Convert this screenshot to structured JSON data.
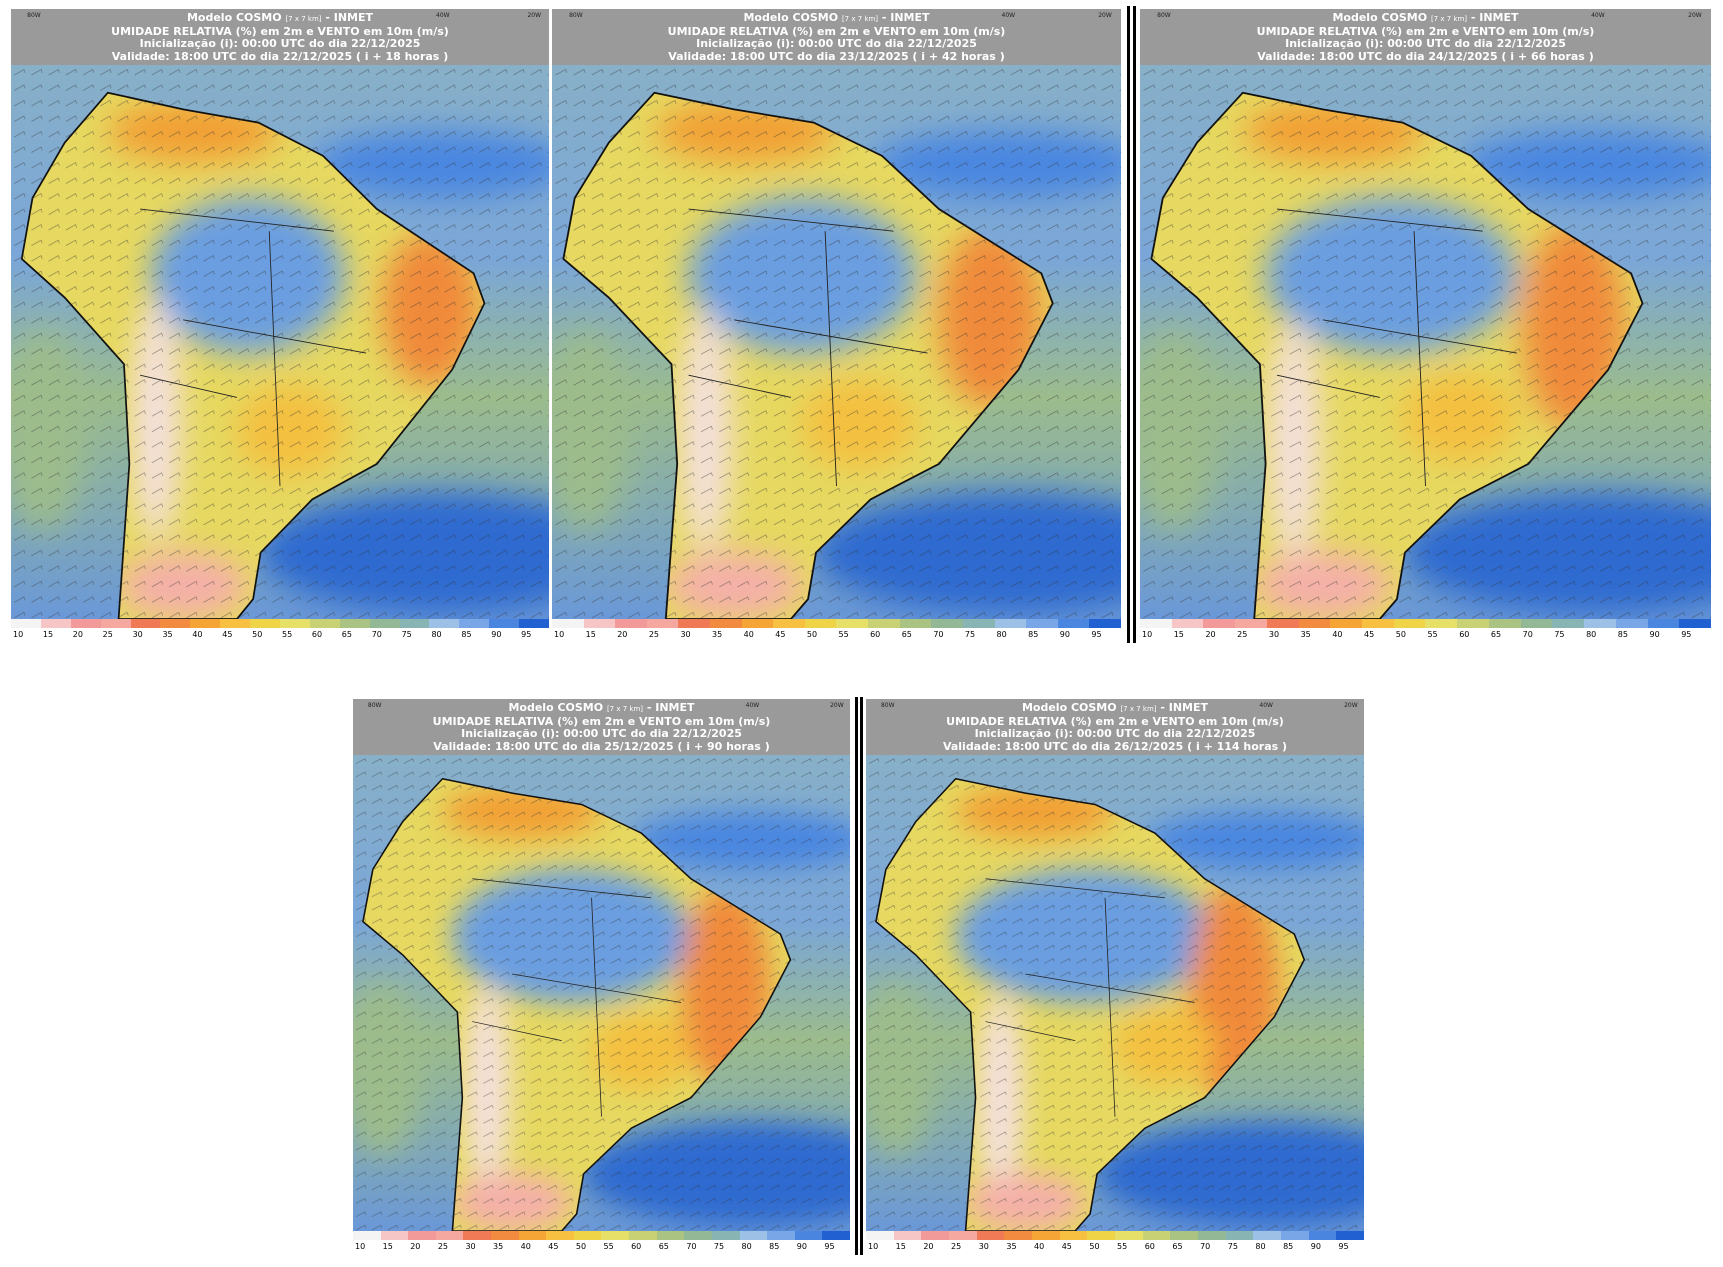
{
  "header": {
    "model": "Modelo COSMO",
    "resolution": "[7 x 7 km]",
    "source": "- INMET",
    "variable": "UMIDADE RELATIVA (%) em 2m e VENTO em 10m (m/s)",
    "init": "Inicialização (i): 00:00 UTC do dia 22/12/2025"
  },
  "longitudes": [
    "80W",
    "40W",
    "20W"
  ],
  "panels": [
    {
      "validity": "Validade: 18:00 UTC do dia 22/12/2025 ( i + 18 horas )"
    },
    {
      "validity": "Validade: 18:00 UTC do dia 23/12/2025 ( i + 42 horas )"
    },
    {
      "validity": "Validade: 18:00 UTC do dia 24/12/2025 ( i + 66 horas )"
    },
    {
      "validity": "Validade: 18:00 UTC do dia 25/12/2025 ( i + 90 horas )"
    },
    {
      "validity": "Validade: 18:00 UTC do dia 26/12/2025 ( i + 114 horas )"
    }
  ],
  "colorbar": [
    {
      "label": 10,
      "color": "#f4f4f4"
    },
    {
      "label": 15,
      "color": "#f6c6c6"
    },
    {
      "label": 20,
      "color": "#f29a9a"
    },
    {
      "label": 25,
      "color": "#f4a8a0"
    },
    {
      "label": 30,
      "color": "#f07a55"
    },
    {
      "label": 35,
      "color": "#f28a40"
    },
    {
      "label": 40,
      "color": "#f5a535"
    },
    {
      "label": 45,
      "color": "#f8c040"
    },
    {
      "label": 50,
      "color": "#f0d448"
    },
    {
      "label": 55,
      "color": "#e6e068"
    },
    {
      "label": 60,
      "color": "#c8d274"
    },
    {
      "label": 65,
      "color": "#aac282"
    },
    {
      "label": 70,
      "color": "#92b896"
    },
    {
      "label": 75,
      "color": "#88b4b4"
    },
    {
      "label": 80,
      "color": "#9cc0e6"
    },
    {
      "label": 85,
      "color": "#78a6e6"
    },
    {
      "label": 90,
      "color": "#4a86e0"
    },
    {
      "label": 95,
      "color": "#2060d0"
    }
  ]
}
